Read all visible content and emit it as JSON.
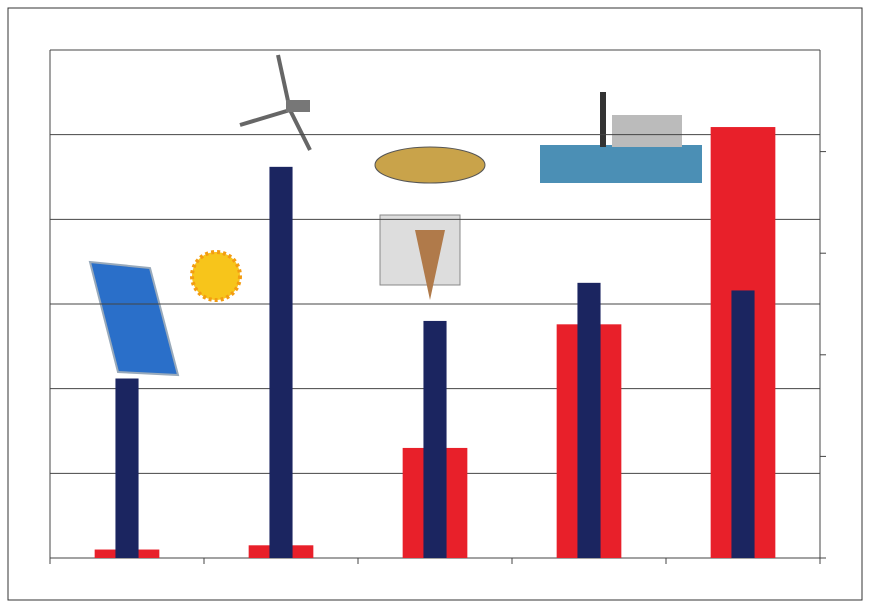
{
  "chart_data": {
    "type": "bar",
    "categories": [
      null,
      null,
      null,
      null,
      null
    ],
    "series": [
      {
        "color": "#e8202a",
        "values": [
          0.1,
          0.15,
          1.3,
          2.76,
          5.09
        ]
      },
      {
        "color": "#1b2560",
        "values": [
          2.12,
          4.62,
          2.8,
          3.25,
          3.16
        ]
      }
    ],
    "ylim": [
      0,
      6
    ],
    "yticks": [
      0,
      1,
      2,
      3,
      4,
      5,
      6
    ],
    "y2lim": [
      0,
      5
    ],
    "y2ticks": [
      0,
      1,
      2,
      3,
      4
    ],
    "grid": true
  }
}
